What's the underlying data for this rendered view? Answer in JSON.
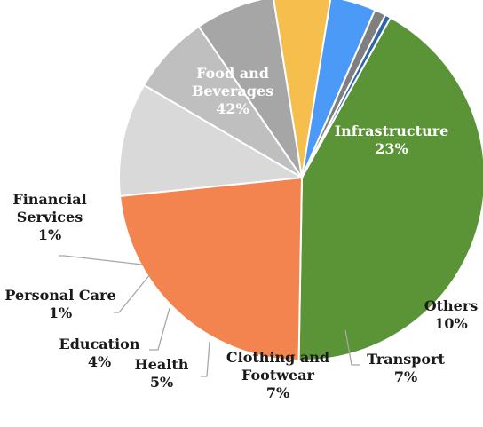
{
  "chart_data": {
    "type": "pie",
    "title": "",
    "slices": [
      {
        "label_lines": [
          "Food and",
          "Beverages"
        ],
        "pct_text": "42%",
        "value": 42,
        "color": "#5B9337",
        "label_inside": true
      },
      {
        "label_lines": [
          "Infrastructure"
        ],
        "pct_text": "23%",
        "value": 23,
        "color": "#F4844F",
        "label_inside": true
      },
      {
        "label_lines": [
          "Others"
        ],
        "pct_text": "10%",
        "value": 10,
        "color": "#D9D9D9",
        "label_inside": false
      },
      {
        "label_lines": [
          "Transport"
        ],
        "pct_text": "7%",
        "value": 7,
        "color": "#BFBFBF",
        "label_inside": false
      },
      {
        "label_lines": [
          "Clothing and",
          "Footwear"
        ],
        "pct_text": "7%",
        "value": 7,
        "color": "#A6A6A6",
        "label_inside": false
      },
      {
        "label_lines": [
          "Health"
        ],
        "pct_text": "5%",
        "value": 5,
        "color": "#F6BE4C",
        "label_inside": false
      },
      {
        "label_lines": [
          "Education"
        ],
        "pct_text": "4%",
        "value": 4,
        "color": "#4C9AF7",
        "label_inside": false
      },
      {
        "label_lines": [
          "Personal Care"
        ],
        "pct_text": "1%",
        "value": 1,
        "color": "#7F7F7F",
        "label_inside": false
      },
      {
        "label_lines": [
          "Financial",
          "Services"
        ],
        "pct_text": "1%",
        "value": 0.5,
        "color": "#2F66A8",
        "label_inside": false
      }
    ]
  }
}
